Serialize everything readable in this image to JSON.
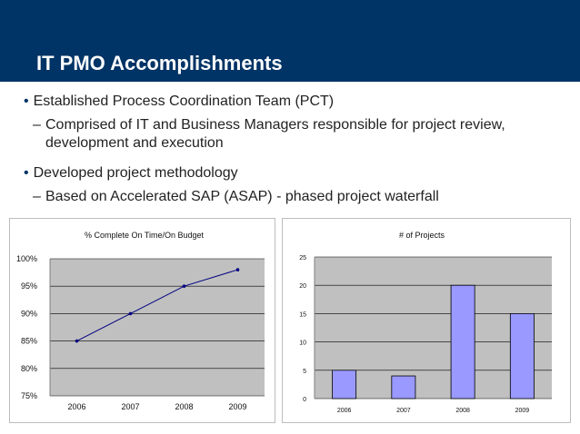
{
  "slide": {
    "title": "IT PMO Accomplishments",
    "bullets": [
      {
        "text": "Established Process Coordination Team (PCT)",
        "sub": [
          "Comprised of IT and Business Managers responsible for project review, development and execution"
        ]
      },
      {
        "text": "Developed project methodology",
        "sub": [
          "Based on Accelerated SAP (ASAP) - phased project waterfall"
        ]
      }
    ],
    "bullet_marker": "•",
    "sub_marker": "–"
  },
  "colors": {
    "header_bg": "#003366",
    "plot_bg": "#c0c0c0",
    "line": "#000080",
    "bar_fill": "#9999ff",
    "bar_stroke": "#000000"
  },
  "chart_data": [
    {
      "type": "line",
      "title": "% Complete On Time/On Budget",
      "categories": [
        "2006",
        "2007",
        "2008",
        "2009"
      ],
      "values": [
        85,
        90,
        95,
        98
      ],
      "ylim": [
        75,
        100
      ],
      "yticks": [
        75,
        80,
        85,
        90,
        95,
        100
      ],
      "ytick_labels": [
        "75%",
        "80%",
        "85%",
        "90%",
        "95%",
        "100%"
      ],
      "grid": true,
      "legend": "none"
    },
    {
      "type": "bar",
      "title": "# of Projects",
      "categories": [
        "2006",
        "2007",
        "2008",
        "2009"
      ],
      "values": [
        5,
        4,
        20,
        15
      ],
      "ylim": [
        0,
        25
      ],
      "yticks": [
        0,
        5,
        10,
        15,
        20,
        25
      ],
      "ytick_labels": [
        "0",
        "5",
        "10",
        "15",
        "20",
        "25"
      ],
      "grid": true,
      "legend": "none"
    }
  ]
}
